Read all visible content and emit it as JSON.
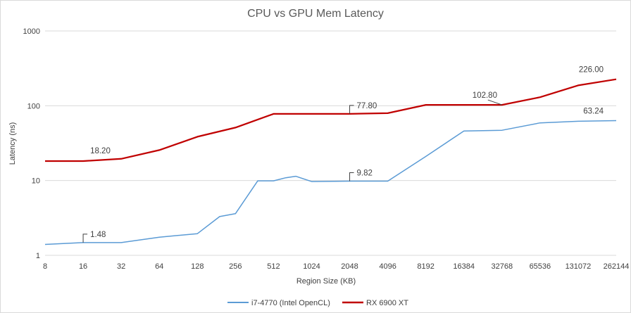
{
  "chart_data": {
    "type": "line",
    "title": "CPU vs GPU Mem Latency",
    "xlabel": "Region Size (KB)",
    "ylabel": "Latency (ns)",
    "yscale": "log",
    "ylim": [
      1,
      1000
    ],
    "yticks": [
      "1",
      "10",
      "100",
      "1000"
    ],
    "xscale": "log2",
    "xticks": [
      "8",
      "16",
      "32",
      "64",
      "128",
      "256",
      "512",
      "1024",
      "2048",
      "4096",
      "8192",
      "16384",
      "32768",
      "65536",
      "131072",
      "262144"
    ],
    "grid": true,
    "legend": "bottom",
    "series": [
      {
        "name": "i7-4770 (Intel OpenCL)",
        "color": "#5b9bd5",
        "points": [
          [
            8,
            1.4
          ],
          [
            16,
            1.48
          ],
          [
            32,
            1.48
          ],
          [
            64,
            1.75
          ],
          [
            128,
            1.95
          ],
          [
            192,
            3.3
          ],
          [
            256,
            3.6
          ],
          [
            384,
            9.9
          ],
          [
            512,
            9.9
          ],
          [
            640,
            10.9
          ],
          [
            768,
            11.4
          ],
          [
            1024,
            9.7
          ],
          [
            2048,
            9.82
          ],
          [
            4096,
            9.82
          ],
          [
            8192,
            21.0
          ],
          [
            16384,
            46.0
          ],
          [
            32768,
            47.0
          ],
          [
            65536,
            59.0
          ],
          [
            131072,
            62.0
          ],
          [
            262144,
            63.24
          ]
        ],
        "labels": [
          {
            "x": 16,
            "y": 1.48,
            "text": "1.48"
          },
          {
            "x": 2048,
            "y": 9.82,
            "text": "9.82"
          },
          {
            "x": 262144,
            "y": 63.24,
            "text": "63.24"
          }
        ]
      },
      {
        "name": "RX 6900 XT",
        "color": "#c00000",
        "points": [
          [
            8,
            18.2
          ],
          [
            16,
            18.2
          ],
          [
            32,
            19.5
          ],
          [
            64,
            25.5
          ],
          [
            128,
            38.5
          ],
          [
            256,
            51.0
          ],
          [
            512,
            77.8
          ],
          [
            1024,
            77.8
          ],
          [
            2048,
            77.8
          ],
          [
            4096,
            79.5
          ],
          [
            8192,
            102.8
          ],
          [
            16384,
            102.8
          ],
          [
            32768,
            102.8
          ],
          [
            65536,
            130.0
          ],
          [
            131072,
            187.0
          ],
          [
            262144,
            226.0
          ]
        ],
        "labels": [
          {
            "x": 16,
            "y": 18.2,
            "text": "18.20"
          },
          {
            "x": 2048,
            "y": 77.8,
            "text": "77.80"
          },
          {
            "x": 32768,
            "y": 102.8,
            "text": "102.80"
          },
          {
            "x": 262144,
            "y": 226.0,
            "text": "226.00"
          }
        ]
      }
    ]
  }
}
